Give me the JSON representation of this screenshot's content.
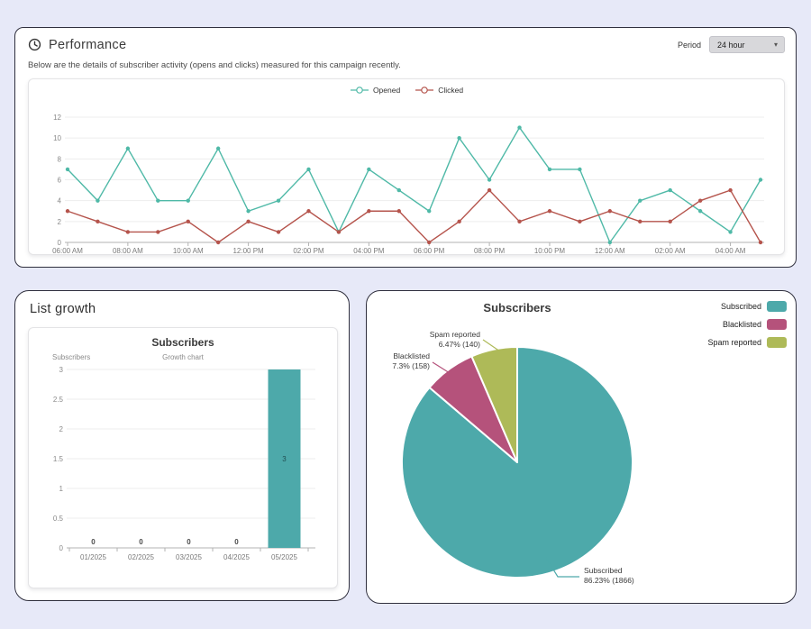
{
  "page": {
    "background": "#e7e9f8"
  },
  "performance": {
    "title": "Performance",
    "subtitle": "Below are the details of subscriber activity (opens and clicks) measured for this campaign recently.",
    "period_label": "Period",
    "period_value": "24 hour",
    "chevron_icon": "▾"
  },
  "list_growth": {
    "title": "List growth"
  },
  "chart_data": [
    {
      "id": "performance-activity",
      "type": "line",
      "x": [
        "06:00 AM",
        "07:00 AM",
        "08:00 AM",
        "09:00 AM",
        "10:00 AM",
        "11:00 AM",
        "12:00 PM",
        "01:00 PM",
        "02:00 PM",
        "03:00 PM",
        "04:00 PM",
        "05:00 PM",
        "06:00 PM",
        "07:00 PM",
        "08:00 PM",
        "09:00 PM",
        "10:00 PM",
        "11:00 PM",
        "12:00 AM",
        "01:00 AM",
        "02:00 AM",
        "03:00 AM",
        "04:00 AM",
        "05:00 AM"
      ],
      "x_label_step": 2,
      "series": [
        {
          "name": "Opened",
          "color": "#4fb9a7",
          "values": [
            7,
            4,
            9,
            4,
            4,
            9,
            3,
            4,
            7,
            1,
            7,
            5,
            3,
            10,
            6,
            11,
            7,
            7,
            0,
            4,
            5,
            3,
            1,
            6
          ]
        },
        {
          "name": "Clicked",
          "color": "#b5544c",
          "values": [
            3,
            2,
            1,
            1,
            2,
            0,
            2,
            1,
            3,
            1,
            3,
            3,
            0,
            2,
            5,
            2,
            3,
            2,
            3,
            2,
            2,
            4,
            5,
            0
          ]
        }
      ],
      "ylim": [
        0,
        12
      ],
      "y_ticks": [
        0,
        2,
        4,
        6,
        8,
        10,
        12
      ],
      "grid": true,
      "legend_position": "top-center"
    },
    {
      "id": "list-growth",
      "type": "bar",
      "title": "Subscribers",
      "subtitle": "Growth chart",
      "ylabel": "Subscribers",
      "categories": [
        "01/2025",
        "02/2025",
        "03/2025",
        "04/2025",
        "05/2025"
      ],
      "values": [
        0,
        0,
        0,
        0,
        3
      ],
      "bar_color": "#4da9aa",
      "ylim": [
        0,
        3
      ],
      "y_ticks": [
        0,
        0.5,
        1,
        1.5,
        2,
        2.5,
        3
      ],
      "grid": true
    },
    {
      "id": "subscribers-pie",
      "type": "pie",
      "title": "Subscribers",
      "slices": [
        {
          "label": "Subscribed",
          "percent": 86.23,
          "count": 1866,
          "value_text": "86.23% (1866)",
          "color": "#4da9aa"
        },
        {
          "label": "Blacklisted",
          "percent": 7.3,
          "count": 158,
          "value_text": "7.3% (158)",
          "color": "#b5527b"
        },
        {
          "label": "Spam reported",
          "percent": 6.47,
          "count": 140,
          "value_text": "6.47% (140)",
          "color": "#aeba58"
        }
      ],
      "legend_position": "top-right",
      "start_angle_deg": 0,
      "direction": "clockwise"
    }
  ]
}
